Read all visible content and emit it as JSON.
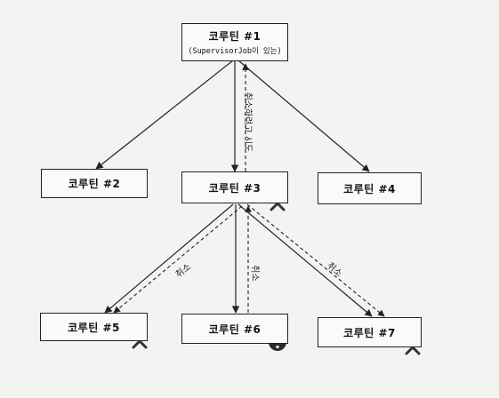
{
  "nodes": {
    "c1": {
      "label": "코루틴 #1",
      "sub": "(SupervisorJob이 있는)"
    },
    "c2": {
      "label": "코루틴 #2"
    },
    "c3": {
      "label": "코루틴 #3"
    },
    "c4": {
      "label": "코루틴 #4"
    },
    "c5": {
      "label": "코루틴 #5"
    },
    "c6": {
      "label": "코루틴 #6"
    },
    "c7": {
      "label": "코루틴 #7"
    }
  },
  "edge_labels": {
    "try_cancel": "취소하려고 시도",
    "cancel_5": "취소",
    "cancel_6": "취소",
    "cancel_7": "취소"
  },
  "markers": {
    "cancelled": "cancelled-x-icon",
    "exception": "exception-alert-icon"
  },
  "colors": {
    "line": "#222222",
    "marker": "#333333",
    "background": "#f3f3f1"
  }
}
